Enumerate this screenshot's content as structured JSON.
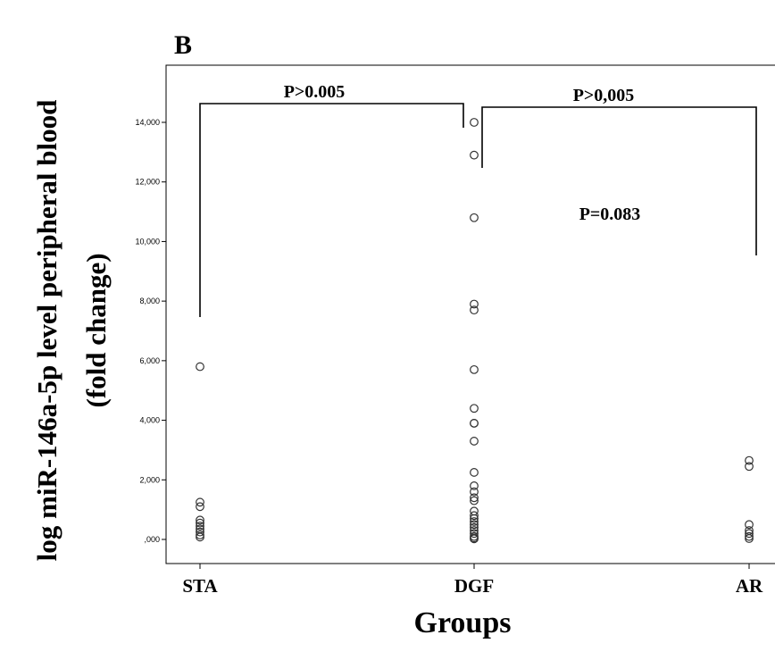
{
  "panel_label": "B",
  "chart_data": {
    "type": "scatter",
    "title": "",
    "xlabel": "Groups",
    "ylabel_line1": "log miR-146a-5p level peripheral blood",
    "ylabel_line2": "(fold change)",
    "categories": [
      "STA",
      "DGF",
      "AR"
    ],
    "ylim": [
      -500,
      15500
    ],
    "yticks": [
      0,
      2000,
      4000,
      6000,
      8000,
      10000,
      12000,
      14000
    ],
    "ytick_labels": [
      ",000",
      "2,000",
      "4,000",
      "6,000",
      "8,000",
      "10,000",
      "12,000",
      "14,000"
    ],
    "grid": false,
    "legend": "none",
    "series": [
      {
        "category": "STA",
        "values": [
          5800,
          1250,
          1100,
          650,
          550,
          450,
          350,
          250,
          150,
          80
        ]
      },
      {
        "category": "DGF",
        "values": [
          14000,
          12900,
          10800,
          7900,
          7700,
          5700,
          4400,
          3900,
          3900,
          3300,
          2250,
          1800,
          1600,
          1400,
          1300,
          950,
          800,
          700,
          600,
          500,
          400,
          300,
          200,
          100,
          50,
          20
        ]
      },
      {
        "category": "AR",
        "values": [
          2650,
          2450,
          500,
          300,
          200,
          100,
          30
        ]
      }
    ],
    "annotations": [
      {
        "id": "sta_dgf",
        "text": "P>0.005"
      },
      {
        "id": "dgf_ar",
        "text": "P>0,005"
      },
      {
        "id": "dgf_ar_sub",
        "text": "P=0.083"
      }
    ]
  }
}
